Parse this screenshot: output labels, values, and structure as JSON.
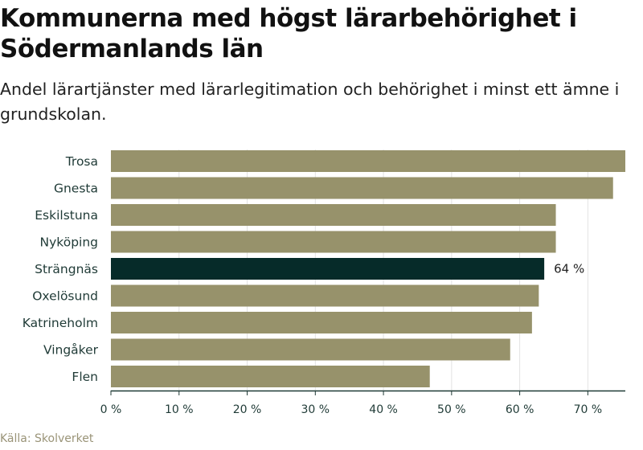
{
  "title": "Kommunerna med högst lärarbehörighet i Södermanlands län",
  "subtitle": "Andel lärartjänster med lärarlegitimation och behörighet i minst ett ämne i grundskolan.",
  "source": "Källa: Skolverket",
  "colors": {
    "bar": "#97926b",
    "highlight": "#062b29",
    "grid": "#e2e2e2",
    "axis": "#1f3a36"
  },
  "chart_data": {
    "type": "bar",
    "orientation": "horizontal",
    "categories": [
      "Trosa",
      "Gnesta",
      "Eskilstuna",
      "Nyköping",
      "Strängnäs",
      "Oxelösund",
      "Katrineholm",
      "Vingåker",
      "Flen"
    ],
    "values": [
      75.5,
      73.7,
      65.3,
      65.3,
      63.6,
      62.8,
      61.8,
      58.6,
      46.8
    ],
    "highlight_index": 4,
    "highlight_label": "64 %",
    "xlim": [
      0,
      75.5
    ],
    "xticks": [
      0,
      10,
      20,
      30,
      40,
      50,
      60,
      70
    ],
    "xtick_labels": [
      "0 %",
      "10 %",
      "20 %",
      "30 %",
      "40 %",
      "50 %",
      "60 %",
      "70 %"
    ],
    "grid": true,
    "xlabel": "",
    "ylabel": ""
  }
}
